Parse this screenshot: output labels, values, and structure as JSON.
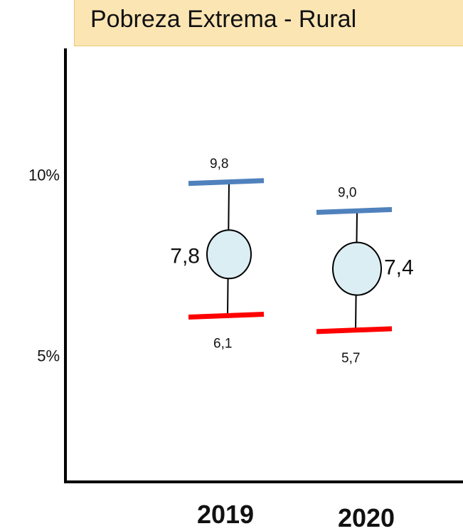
{
  "chart_data": {
    "type": "interval",
    "title": "Pobreza Extrema - Rural",
    "categories": [
      "2019",
      "2020"
    ],
    "y_tick_labels": [
      "10%",
      "5%"
    ],
    "y_ticks": [
      10,
      5
    ],
    "ylim": [
      1.5,
      13.5
    ],
    "series": [
      {
        "central": 7.8,
        "upper": 9.8,
        "lower": 6.1,
        "central_label": "7,8",
        "upper_label": "9,8",
        "lower_label": "6,1"
      },
      {
        "central": 7.4,
        "upper": 9.0,
        "lower": 5.7,
        "central_label": "7,4",
        "upper_label": "9,0",
        "lower_label": "5,7"
      }
    ],
    "colors": {
      "upper": "#4f81bd",
      "lower": "#ff0000",
      "circle_fill": "#dbeef4",
      "axis": "#000000"
    },
    "grid": false,
    "legend": "none"
  }
}
